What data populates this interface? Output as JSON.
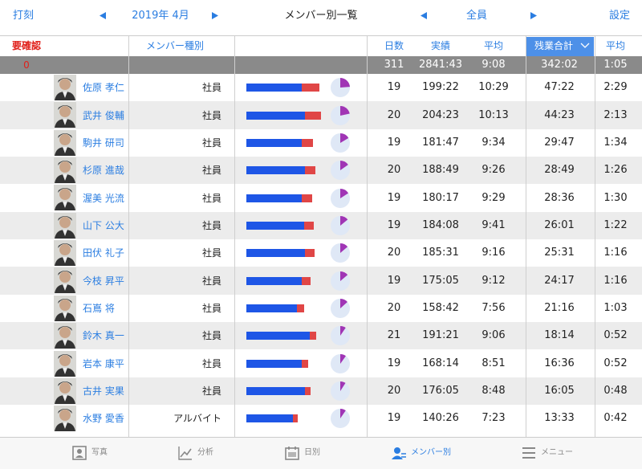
{
  "header": {
    "left": "打刻",
    "month": "2019年 4月",
    "title": "メンバー別一覧",
    "filter": "全員",
    "settings": "設定"
  },
  "columns": {
    "check": "要確認",
    "type": "メンバー種別",
    "days": "日数",
    "actual": "実績",
    "avg": "平均",
    "overtime": "残業合計",
    "ot_avg": "平均"
  },
  "summary": {
    "check": "0",
    "days": "311",
    "actual": "2841:43",
    "avg": "9:08",
    "overtime": "342:02",
    "ot_avg": "1:05"
  },
  "rows": [
    {
      "name": "佐原 孝仁",
      "type": "社員",
      "days": "19",
      "actual": "199:22",
      "avg": "10:29",
      "overtime": "47:22",
      "ot_avg": "2:29"
    },
    {
      "name": "武井 俊輔",
      "type": "社員",
      "days": "20",
      "actual": "204:23",
      "avg": "10:13",
      "overtime": "44:23",
      "ot_avg": "2:13"
    },
    {
      "name": "駒井 研司",
      "type": "社員",
      "days": "19",
      "actual": "181:47",
      "avg": "9:34",
      "overtime": "29:47",
      "ot_avg": "1:34"
    },
    {
      "name": "杉原 進哉",
      "type": "社員",
      "days": "20",
      "actual": "188:49",
      "avg": "9:26",
      "overtime": "28:49",
      "ot_avg": "1:26"
    },
    {
      "name": "渥美 光流",
      "type": "社員",
      "days": "19",
      "actual": "180:17",
      "avg": "9:29",
      "overtime": "28:36",
      "ot_avg": "1:30"
    },
    {
      "name": "山下 公大",
      "type": "社員",
      "days": "19",
      "actual": "184:08",
      "avg": "9:41",
      "overtime": "26:01",
      "ot_avg": "1:22"
    },
    {
      "name": "田伏 礼子",
      "type": "社員",
      "days": "20",
      "actual": "185:31",
      "avg": "9:16",
      "overtime": "25:31",
      "ot_avg": "1:16"
    },
    {
      "name": "今枝 昇平",
      "type": "社員",
      "days": "19",
      "actual": "175:05",
      "avg": "9:12",
      "overtime": "24:17",
      "ot_avg": "1:16"
    },
    {
      "name": "石嶌 将",
      "type": "社員",
      "days": "20",
      "actual": "158:42",
      "avg": "7:56",
      "overtime": "21:16",
      "ot_avg": "1:03"
    },
    {
      "name": "鈴木 真一",
      "type": "社員",
      "days": "21",
      "actual": "191:21",
      "avg": "9:06",
      "overtime": "18:14",
      "ot_avg": "0:52"
    },
    {
      "name": "岩本 康平",
      "type": "社員",
      "days": "19",
      "actual": "168:14",
      "avg": "8:51",
      "overtime": "16:36",
      "ot_avg": "0:52"
    },
    {
      "name": "古井 実果",
      "type": "社員",
      "days": "20",
      "actual": "176:05",
      "avg": "8:48",
      "overtime": "16:05",
      "ot_avg": "0:48"
    },
    {
      "name": "水野 愛香",
      "type": "アルバイト",
      "days": "19",
      "actual": "140:26",
      "avg": "7:23",
      "overtime": "13:33",
      "ot_avg": "0:42"
    }
  ],
  "tabs": [
    "写真",
    "分析",
    "日別",
    "メンバー別",
    "メニュー"
  ],
  "active_tab": 3
}
